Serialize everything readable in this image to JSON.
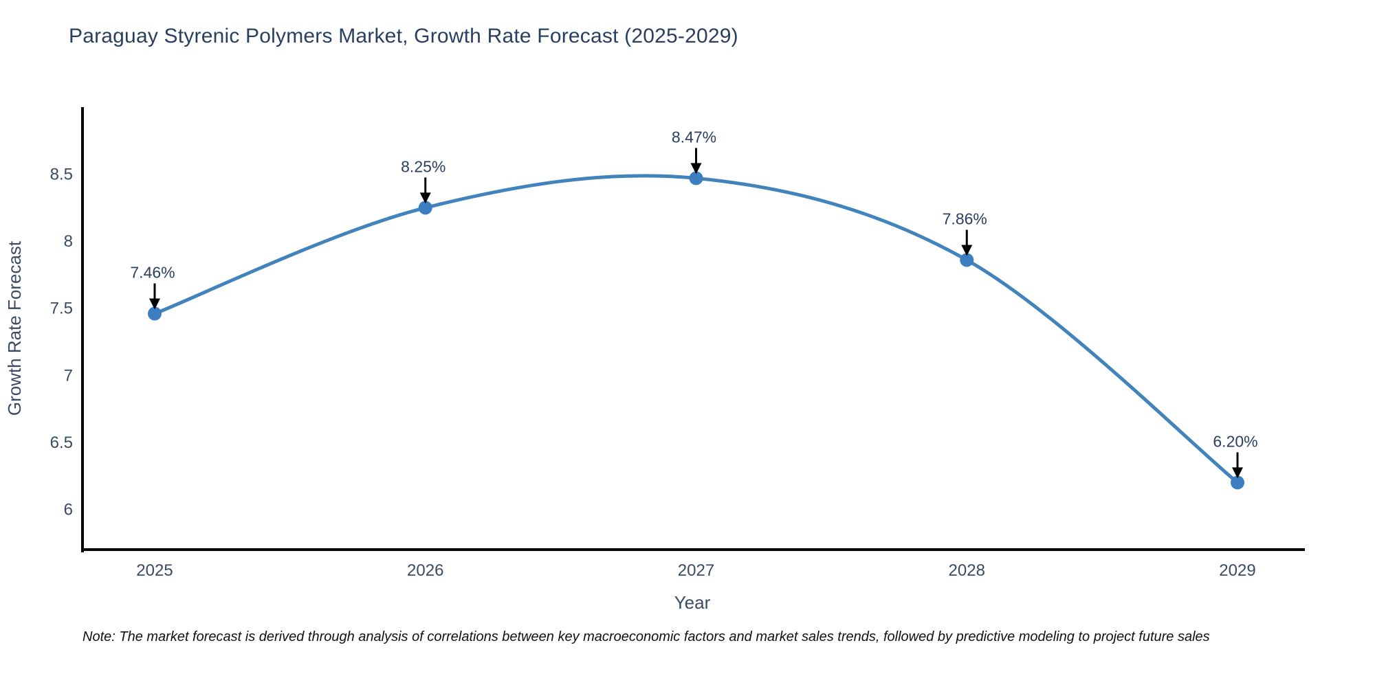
{
  "title": "Paraguay Styrenic Polymers Market, Growth Rate Forecast (2025-2029)",
  "note": "Note: The market forecast is derived through analysis of correlations between key macroeconomic factors and market sales trends, followed by predictive modeling to project future sales",
  "chart_data": {
    "type": "line",
    "line_shape": "spline",
    "title": "Paraguay Styrenic Polymers Market, Growth Rate Forecast (2025-2029)",
    "xlabel": "Year",
    "ylabel": "Growth Rate Forecast",
    "x": [
      2025,
      2026,
      2027,
      2028,
      2029
    ],
    "y": [
      7.46,
      8.25,
      8.47,
      7.86,
      6.2
    ],
    "point_labels": [
      "7.46%",
      "8.25%",
      "8.47%",
      "7.86%",
      "6.20%"
    ],
    "xtick_labels": [
      "2025",
      "2026",
      "2027",
      "2028",
      "2029"
    ],
    "yticks": [
      8.5,
      8,
      7.5,
      7,
      6.5,
      6
    ],
    "ytick_labels": [
      "8.5",
      "8",
      "7.5",
      "7",
      "6.5",
      "6"
    ],
    "ylim": [
      5.7,
      9.0
    ],
    "grid": false,
    "legend": false,
    "annotations_have_arrows": true,
    "colors": {
      "line": "#4383bb",
      "marker": "#3d7ec0",
      "axis_line": "#000000",
      "title_text": "#2a3f5f",
      "tick_text": "#3b4a63",
      "axis_title_text": "#3b4a63",
      "annotation_text": "#2a3f5f",
      "arrow": "#000000",
      "note_text": "#111111",
      "background": "#ffffff"
    }
  }
}
